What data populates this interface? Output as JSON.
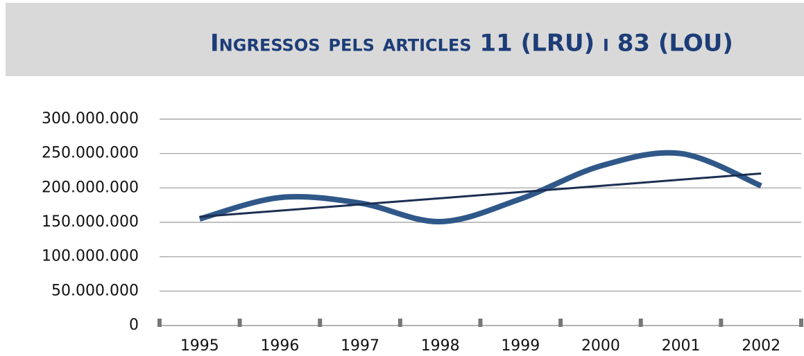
{
  "chart_data": {
    "type": "line",
    "title": "Ingressos pels articles 11 (LRU) i 83 (LOU)",
    "categories": [
      "1995",
      "1996",
      "1997",
      "1998",
      "1999",
      "2000",
      "2001",
      "2002"
    ],
    "series": [
      {
        "color": "#2f5889",
        "values": [
          155000000,
          186000000,
          178000000,
          151000000,
          184000000,
          232000000,
          250000000,
          203000000
        ],
        "smooth": true
      },
      {
        "color": "#1c2f52",
        "values": [
          158000000,
          167000000,
          176000000,
          185000000,
          194000000,
          203000000,
          212000000,
          221000000
        ],
        "smooth": false
      }
    ],
    "ylim": [
      0,
      300000000
    ],
    "yticks": [
      0,
      {
        "value": 50000000,
        "label": "50.000.000"
      },
      {
        "value": 100000000,
        "label": "100.000.000"
      },
      {
        "value": 150000000,
        "label": "150.000.000"
      },
      {
        "value": 200000000,
        "label": "200.000.000"
      },
      {
        "value": 250000000,
        "label": "250.000.000"
      },
      {
        "value": 300000000,
        "label": "300.000.000"
      }
    ],
    "grid": true
  }
}
